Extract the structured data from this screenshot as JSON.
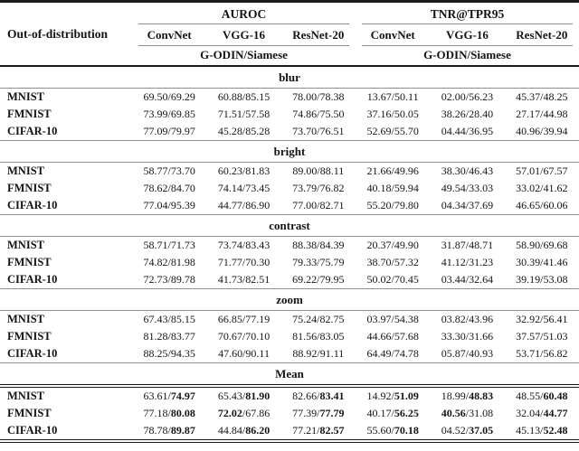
{
  "table": {
    "col0_header": "Out-of-distribution",
    "value_separator": "/",
    "groups": [
      {
        "label": "AUROC",
        "models": [
          "ConvNet",
          "VGG-16",
          "ResNet-20"
        ],
        "method": "G-ODIN/Siamese"
      },
      {
        "label": "TNR@TPR95",
        "models": [
          "ConvNet",
          "VGG-16",
          "ResNet-20"
        ],
        "method": "G-ODIN/Siamese"
      }
    ],
    "sections": [
      {
        "title": "blur",
        "rows": [
          {
            "label": "MNIST",
            "cells": [
              [
                "69.50",
                "69.29"
              ],
              [
                "60.88",
                "85.15"
              ],
              [
                "78.00",
                "78.38"
              ],
              [
                "13.67",
                "50.11"
              ],
              [
                "02.00",
                "56.23"
              ],
              [
                "45.37",
                "48.25"
              ]
            ]
          },
          {
            "label": "FMNIST",
            "cells": [
              [
                "73.99",
                "69.85"
              ],
              [
                "71.51",
                "57.58"
              ],
              [
                "74.86",
                "75.50"
              ],
              [
                "37.16",
                "50.05"
              ],
              [
                "38.26",
                "28.40"
              ],
              [
                "27.17",
                "44.98"
              ]
            ]
          },
          {
            "label": "CIFAR-10",
            "cells": [
              [
                "77.09",
                "79.97"
              ],
              [
                "45.28",
                "85.28"
              ],
              [
                "73.70",
                "76.51"
              ],
              [
                "52.69",
                "55.70"
              ],
              [
                "04.44",
                "36.95"
              ],
              [
                "40.96",
                "39.94"
              ]
            ]
          }
        ]
      },
      {
        "title": "bright",
        "rows": [
          {
            "label": "MNIST",
            "cells": [
              [
                "58.77",
                "73.70"
              ],
              [
                "60.23",
                "81.83"
              ],
              [
                "89.00",
                "88.11"
              ],
              [
                "21.66",
                "49.96"
              ],
              [
                "38.30",
                "46.43"
              ],
              [
                "57.01",
                "67.57"
              ]
            ]
          },
          {
            "label": "FMNIST",
            "cells": [
              [
                "78.62",
                "84.70"
              ],
              [
                "74.14",
                "73.45"
              ],
              [
                "73.79",
                "76.82"
              ],
              [
                "40.18",
                "59.94"
              ],
              [
                "49.54",
                "33.03"
              ],
              [
                "33.02",
                "41.62"
              ]
            ]
          },
          {
            "label": "CIFAR-10",
            "cells": [
              [
                "77.04",
                "95.39"
              ],
              [
                "44.77",
                "86.90"
              ],
              [
                "77.00",
                "82.71"
              ],
              [
                "55.20",
                "79.80"
              ],
              [
                "04.34",
                "37.69"
              ],
              [
                "46.65",
                "60.06"
              ]
            ]
          }
        ]
      },
      {
        "title": "contrast",
        "rows": [
          {
            "label": "MNIST",
            "cells": [
              [
                "58.71",
                "71.73"
              ],
              [
                "73.74",
                "83.43"
              ],
              [
                "88.38",
                "84.39"
              ],
              [
                "20.37",
                "49.90"
              ],
              [
                "31.87",
                "48.71"
              ],
              [
                "58.90",
                "69.68"
              ]
            ]
          },
          {
            "label": "FMNIST",
            "cells": [
              [
                "74.82",
                "81.98"
              ],
              [
                "71.77",
                "70.30"
              ],
              [
                "79.33",
                "75.79"
              ],
              [
                "38.70",
                "57.32"
              ],
              [
                "41.12",
                "31.23"
              ],
              [
                "30.39",
                "41.46"
              ]
            ]
          },
          {
            "label": "CIFAR-10",
            "cells": [
              [
                "72.73",
                "89.78"
              ],
              [
                "41.73",
                "82.51"
              ],
              [
                "69.22",
                "79.95"
              ],
              [
                "50.02",
                "70.45"
              ],
              [
                "03.44",
                "32.64"
              ],
              [
                "39.19",
                "53.08"
              ]
            ]
          }
        ]
      },
      {
        "title": "zoom",
        "rows": [
          {
            "label": "MNIST",
            "cells": [
              [
                "67.43",
                "85.15"
              ],
              [
                "66.85",
                "77.19"
              ],
              [
                "75.24",
                "82.75"
              ],
              [
                "03.97",
                "54.38"
              ],
              [
                "03.82",
                "43.96"
              ],
              [
                "32.92",
                "56.41"
              ]
            ]
          },
          {
            "label": "FMNIST",
            "cells": [
              [
                "81.28",
                "83.77"
              ],
              [
                "70.67",
                "70.10"
              ],
              [
                "81.56",
                "83.05"
              ],
              [
                "44.66",
                "57.68"
              ],
              [
                "33.30",
                "31.66"
              ],
              [
                "37.57",
                "51.03"
              ]
            ]
          },
          {
            "label": "CIFAR-10",
            "cells": [
              [
                "88.25",
                "94.35"
              ],
              [
                "47.60",
                "90.11"
              ],
              [
                "88.92",
                "91.11"
              ],
              [
                "64.49",
                "74.78"
              ],
              [
                "05.87",
                "40.93"
              ],
              [
                "53.71",
                "56.82"
              ]
            ]
          }
        ]
      },
      {
        "title": "Mean",
        "emphasized": true,
        "rows": [
          {
            "label": "MNIST",
            "cells": [
              [
                "63.61",
                "74.97",
                0,
                1
              ],
              [
                "65.43",
                "81.90",
                0,
                1
              ],
              [
                "82.66",
                "83.41",
                0,
                1
              ],
              [
                "14.92",
                "51.09",
                0,
                1
              ],
              [
                "18.99",
                "48.83",
                0,
                1
              ],
              [
                "48.55",
                "60.48",
                0,
                1
              ]
            ]
          },
          {
            "label": "FMNIST",
            "cells": [
              [
                "77.18",
                "80.08",
                0,
                1
              ],
              [
                "72.02",
                "67.86",
                1,
                0
              ],
              [
                "77.39",
                "77.79",
                0,
                1
              ],
              [
                "40.17",
                "56.25",
                0,
                1
              ],
              [
                "40.56",
                "31.08",
                1,
                0
              ],
              [
                "32.04",
                "44.77",
                0,
                1
              ]
            ]
          },
          {
            "label": "CIFAR-10",
            "cells": [
              [
                "78.78",
                "89.87",
                0,
                1
              ],
              [
                "44.84",
                "86.20",
                0,
                1
              ],
              [
                "77.21",
                "82.57",
                0,
                1
              ],
              [
                "55.60",
                "70.18",
                0,
                1
              ],
              [
                "04.52",
                "37.05",
                0,
                1
              ],
              [
                "45.13",
                "52.48",
                0,
                1
              ]
            ]
          }
        ]
      }
    ]
  }
}
